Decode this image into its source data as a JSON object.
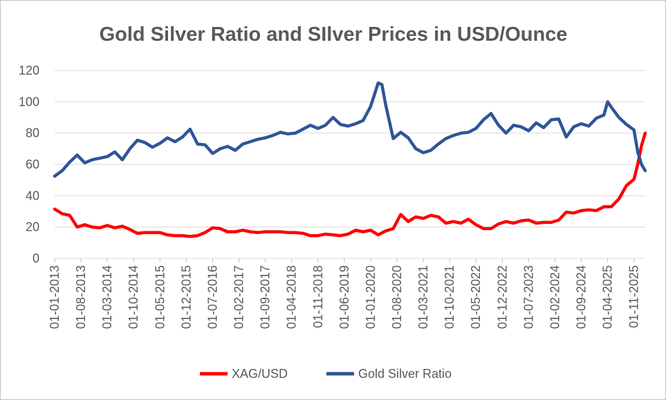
{
  "chart_data": {
    "type": "line",
    "title": "Gold Silver Ratio and SIlver Prices in USD/Ounce",
    "xlabel": "",
    "ylabel": "",
    "ylim": [
      0,
      120
    ],
    "yticks": [
      "0",
      "20",
      "40",
      "60",
      "80",
      "100",
      "120"
    ],
    "grid": true,
    "legend_position": "bottom",
    "x_range": [
      "01-01-2013",
      "01-02-2026"
    ],
    "xtick_labels": [
      "01-01-2013",
      "01-08-2013",
      "01-03-2014",
      "01-10-2014",
      "01-05-2015",
      "01-12-2015",
      "01-07-2016",
      "01-02-2017",
      "01-09-2017",
      "01-04-2018",
      "01-11-2018",
      "01-06-2019",
      "01-01-2020",
      "01-08-2020",
      "01-03-2021",
      "01-10-2021",
      "01-05-2022",
      "01-12-2022",
      "01-07-2023",
      "01-02-2024",
      "01-09-2024",
      "01-04-2025",
      "01-11-2025"
    ],
    "series": [
      {
        "name": "XAG/USD",
        "color": "#ff0000",
        "x": [
          "01-01-2013",
          "01-03-2013",
          "01-05-2013",
          "01-07-2013",
          "01-09-2013",
          "01-11-2013",
          "01-01-2014",
          "01-03-2014",
          "01-05-2014",
          "01-07-2014",
          "01-09-2014",
          "01-11-2014",
          "01-01-2015",
          "01-03-2015",
          "01-05-2015",
          "01-07-2015",
          "01-09-2015",
          "01-11-2015",
          "01-01-2016",
          "01-03-2016",
          "01-05-2016",
          "01-07-2016",
          "01-09-2016",
          "01-11-2016",
          "01-01-2017",
          "01-03-2017",
          "01-05-2017",
          "01-07-2017",
          "01-09-2017",
          "01-11-2017",
          "01-01-2018",
          "01-03-2018",
          "01-05-2018",
          "01-07-2018",
          "01-09-2018",
          "01-11-2018",
          "01-01-2019",
          "01-03-2019",
          "01-05-2019",
          "01-07-2019",
          "01-09-2019",
          "01-11-2019",
          "01-01-2020",
          "01-03-2020",
          "01-05-2020",
          "01-07-2020",
          "01-09-2020",
          "01-11-2020",
          "01-01-2021",
          "01-03-2021",
          "01-05-2021",
          "01-07-2021",
          "01-09-2021",
          "01-11-2021",
          "01-01-2022",
          "01-03-2022",
          "01-05-2022",
          "01-07-2022",
          "01-09-2022",
          "01-11-2022",
          "01-01-2023",
          "01-03-2023",
          "01-05-2023",
          "01-07-2023",
          "01-09-2023",
          "01-11-2023",
          "01-01-2024",
          "01-03-2024",
          "01-05-2024",
          "01-07-2024",
          "01-09-2024",
          "01-11-2024",
          "01-01-2025",
          "01-03-2025",
          "01-05-2025",
          "01-07-2025",
          "01-09-2025",
          "01-11-2025",
          "01-12-2025",
          "01-01-2026",
          "01-02-2026"
        ],
        "values": [
          31.5,
          28.5,
          27.5,
          20.0,
          21.5,
          20.0,
          19.5,
          21.0,
          19.5,
          20.5,
          18.5,
          16.0,
          16.5,
          16.5,
          16.5,
          15.0,
          14.5,
          14.5,
          14.0,
          14.5,
          16.5,
          19.5,
          19.0,
          17.0,
          17.0,
          18.0,
          17.0,
          16.5,
          17.0,
          17.0,
          17.0,
          16.5,
          16.5,
          16.0,
          14.5,
          14.5,
          15.5,
          15.0,
          14.5,
          15.5,
          18.0,
          17.0,
          18.0,
          15.0,
          17.5,
          19.0,
          28.0,
          23.5,
          26.5,
          25.5,
          27.5,
          26.5,
          22.5,
          23.5,
          22.5,
          25.0,
          21.5,
          19.0,
          19.0,
          22.0,
          23.5,
          22.5,
          24.0,
          24.5,
          22.5,
          23.0,
          23.0,
          24.5,
          29.5,
          29.0,
          30.5,
          31.0,
          30.5,
          33.0,
          33.0,
          38.0,
          46.5,
          50.5,
          60.0,
          72.0,
          80.0
        ]
      },
      {
        "name": "Gold Silver Ratio",
        "color": "#2f5597",
        "x": [
          "01-01-2013",
          "01-03-2013",
          "01-05-2013",
          "01-07-2013",
          "01-09-2013",
          "01-11-2013",
          "01-01-2014",
          "01-03-2014",
          "01-05-2014",
          "01-07-2014",
          "01-09-2014",
          "01-11-2014",
          "01-01-2015",
          "01-03-2015",
          "01-05-2015",
          "01-07-2015",
          "01-09-2015",
          "01-11-2015",
          "01-01-2016",
          "01-03-2016",
          "01-05-2016",
          "01-07-2016",
          "01-09-2016",
          "01-11-2016",
          "01-01-2017",
          "01-03-2017",
          "01-05-2017",
          "01-07-2017",
          "01-09-2017",
          "01-11-2017",
          "01-01-2018",
          "01-03-2018",
          "01-05-2018",
          "01-07-2018",
          "01-09-2018",
          "01-11-2018",
          "01-01-2019",
          "01-03-2019",
          "01-05-2019",
          "01-07-2019",
          "01-09-2019",
          "01-11-2019",
          "01-01-2020",
          "01-03-2020",
          "01-04-2020",
          "01-05-2020",
          "01-07-2020",
          "01-09-2020",
          "01-11-2020",
          "01-01-2021",
          "01-03-2021",
          "01-05-2021",
          "01-07-2021",
          "01-09-2021",
          "01-11-2021",
          "01-01-2022",
          "01-03-2022",
          "01-05-2022",
          "01-07-2022",
          "01-09-2022",
          "01-11-2022",
          "01-01-2023",
          "01-03-2023",
          "01-05-2023",
          "01-07-2023",
          "01-09-2023",
          "01-11-2023",
          "01-01-2024",
          "01-03-2024",
          "01-05-2024",
          "01-07-2024",
          "01-09-2024",
          "01-11-2024",
          "01-01-2025",
          "01-03-2025",
          "01-04-2025",
          "01-05-2025",
          "01-07-2025",
          "01-09-2025",
          "01-11-2025",
          "01-12-2025",
          "01-01-2026",
          "01-02-2026"
        ],
        "values": [
          52.5,
          56.0,
          61.5,
          66.0,
          61.0,
          63.0,
          64.0,
          65.0,
          68.0,
          63.0,
          70.0,
          75.5,
          74.0,
          71.0,
          73.5,
          77.0,
          74.5,
          77.5,
          82.5,
          73.0,
          72.5,
          67.0,
          70.0,
          71.5,
          69.0,
          73.0,
          74.5,
          76.0,
          77.0,
          78.5,
          80.5,
          79.5,
          80.0,
          82.5,
          85.0,
          83.0,
          85.0,
          90.0,
          85.5,
          84.5,
          86.0,
          88.0,
          97.0,
          112.0,
          111.0,
          98.0,
          76.5,
          80.5,
          77.0,
          70.0,
          67.5,
          69.0,
          73.0,
          76.5,
          78.5,
          80.0,
          80.5,
          83.0,
          88.5,
          92.5,
          85.0,
          80.0,
          85.0,
          84.0,
          81.5,
          86.5,
          83.5,
          88.5,
          89.0,
          77.5,
          84.0,
          86.0,
          84.5,
          89.5,
          91.5,
          100.0,
          96.5,
          90.0,
          85.5,
          82.0,
          68.0,
          60.0,
          56.0
        ]
      }
    ]
  }
}
